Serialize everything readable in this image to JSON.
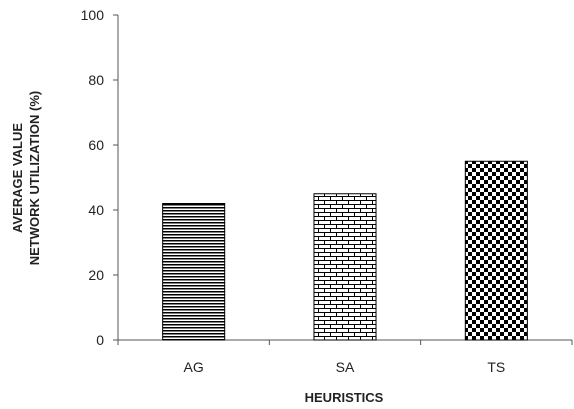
{
  "chart_data": {
    "type": "bar",
    "categories": [
      "AG",
      "SA",
      "TS"
    ],
    "values": [
      42,
      45,
      55
    ],
    "patterns": [
      "horizontal-lines",
      "brick",
      "checkerboard"
    ],
    "xlabel": "HEURISTICS",
    "ylabel_line1": "AVERAGE VALUE",
    "ylabel_line2": "NETWORK  UTILIZATION  (%)",
    "ylim": [
      0,
      100
    ],
    "yticks": [
      "0",
      "20",
      "40",
      "60",
      "80",
      "100"
    ],
    "grid": false,
    "colors": {
      "axis": "#555555",
      "bar": "#000000",
      "background": "#ffffff"
    }
  }
}
